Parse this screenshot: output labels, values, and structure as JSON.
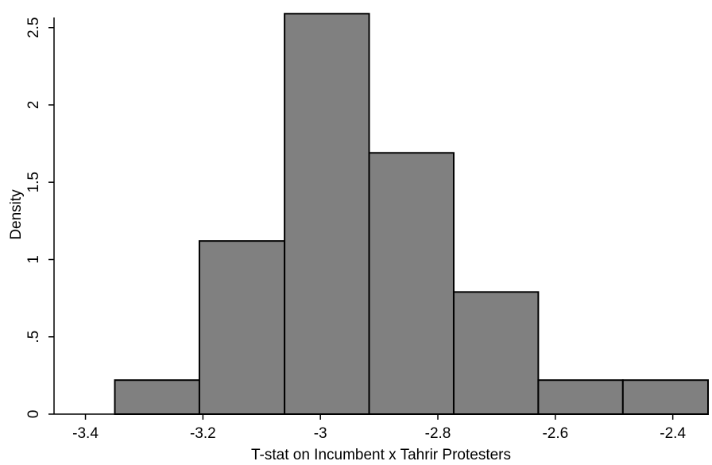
{
  "chart_data": {
    "type": "histogram",
    "title": "",
    "xlabel": "T-stat on Incumbent x Tahrir Protesters",
    "ylabel": "Density",
    "xlim": [
      -3.45,
      -2.34
    ],
    "ylim": [
      0,
      2.6
    ],
    "x_ticks": [
      -3.4,
      -3.2,
      -3.0,
      -2.8,
      -2.6,
      -2.4
    ],
    "x_tick_labels": [
      "-3.4",
      "-3.2",
      "-3",
      "-2.8",
      "-2.6",
      "-2.4"
    ],
    "y_ticks": [
      0,
      0.5,
      1,
      1.5,
      2,
      2.5
    ],
    "y_tick_labels": [
      "0",
      ".5",
      "1",
      "1.5",
      "2",
      "2.5"
    ],
    "bins": [
      {
        "start": -3.35,
        "end": -3.206,
        "density": 0.22
      },
      {
        "start": -3.206,
        "end": -3.061,
        "density": 1.12
      },
      {
        "start": -3.061,
        "end": -2.917,
        "density": 2.59
      },
      {
        "start": -2.917,
        "end": -2.773,
        "density": 1.69
      },
      {
        "start": -2.773,
        "end": -2.629,
        "density": 0.79
      },
      {
        "start": -2.629,
        "end": -2.485,
        "density": 0.22
      },
      {
        "start": -2.485,
        "end": -2.34,
        "density": 0.22
      }
    ],
    "bar_color": "#808080",
    "bar_edge_color": "#000000",
    "grid": false,
    "legend": "none"
  }
}
